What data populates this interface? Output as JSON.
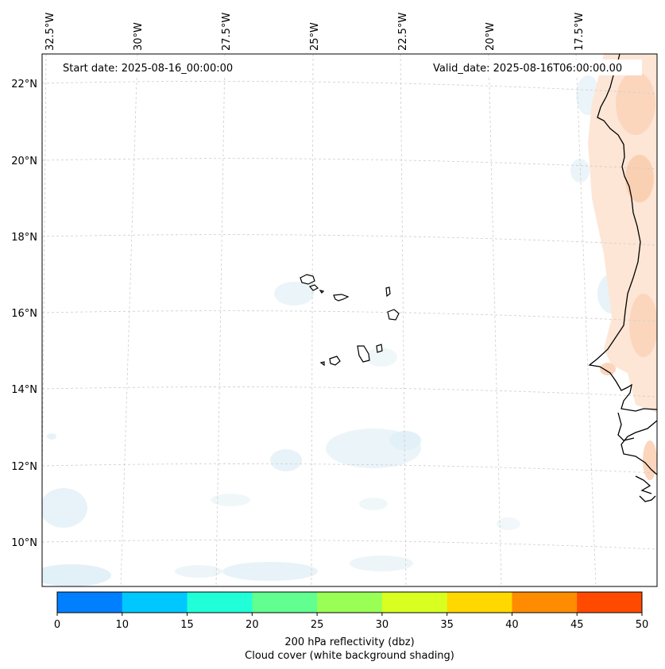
{
  "map": {
    "start_date": "Start date: 2025-08-16_00:00:00",
    "valid_date": "Valid_date: 2025-08-16T06:00:00.00",
    "lon_labels": [
      "32.5°W",
      "30°W",
      "27.5°W",
      "25°W",
      "22.5°W",
      "20°W",
      "17.5°W"
    ],
    "lat_labels": [
      "22°N",
      "20°N",
      "18°N",
      "16°N",
      "14°N",
      "12°N",
      "10°N"
    ],
    "coastline_color": "#000000",
    "gridline_color": "#cccccc",
    "cloud_shading_color": "#e6f2f7",
    "reflectivity_shading_color": "#fbd9c2"
  },
  "colorbar": {
    "ticks": [
      "0",
      "10",
      "15",
      "20",
      "25",
      "30",
      "35",
      "40",
      "45",
      "50"
    ],
    "colors": [
      "#0080ff",
      "#00c8ff",
      "#20ffd8",
      "#60ff90",
      "#9aff55",
      "#d8ff20",
      "#ffd800",
      "#ff8c00",
      "#ff4a00"
    ],
    "title_line1": "200 hPa reflectivity (dbz)",
    "title_line2": "Cloud cover (white background shading)"
  }
}
